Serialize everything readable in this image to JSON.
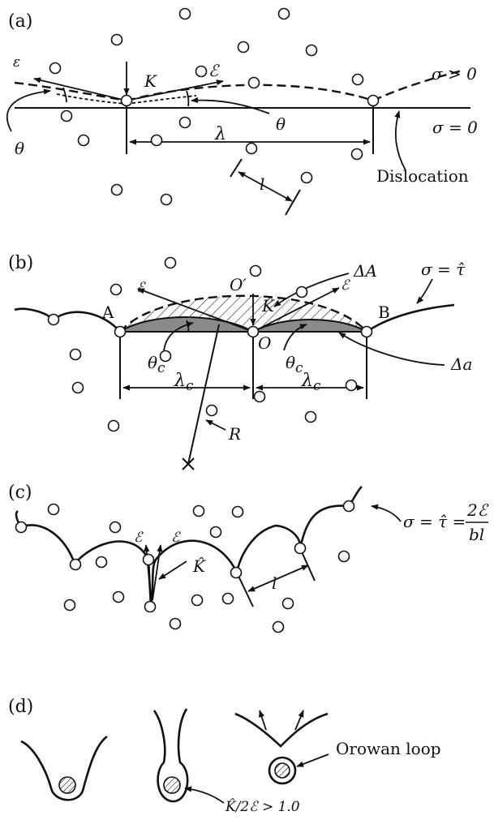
{
  "panels": {
    "a": {
      "label": "(a)",
      "epsilon": "ε",
      "K": "K",
      "line_tension": "ℰ",
      "sigma_pos": "σ > 0",
      "theta": "θ",
      "sigma_zero": "σ = 0",
      "lambda": "λ",
      "l": "l",
      "dislocation": "Dislocation"
    },
    "b": {
      "label": "(b)",
      "delta_A": "ΔA",
      "O_prime": "O′",
      "sigma_tau": "σ = τ̂",
      "line_tension": "ℰ",
      "K_hat": "K̂",
      "A": "A",
      "B": "B",
      "O": "O",
      "theta_c": "θ",
      "theta_c_sub": "c",
      "delta_a": "Δa",
      "lambda_c": "λ",
      "lambda_c_sub": "c",
      "R": "R"
    },
    "c": {
      "label": "(c)",
      "sigma_lhs": "σ = τ̂ =",
      "frac_num": "2ℰ",
      "frac_den": "bl",
      "line_tension": "ℰ",
      "K_hat": "K̂",
      "l": "l"
    },
    "d": {
      "label": "(d)",
      "orowan_loop": "Orowan loop",
      "criterion": "K̂/2ℰ > 1.0"
    }
  },
  "colors": {
    "ink": "#111111",
    "shade": "#8a8a8a",
    "paper": "#ffffff"
  },
  "obstacle_count": 66
}
